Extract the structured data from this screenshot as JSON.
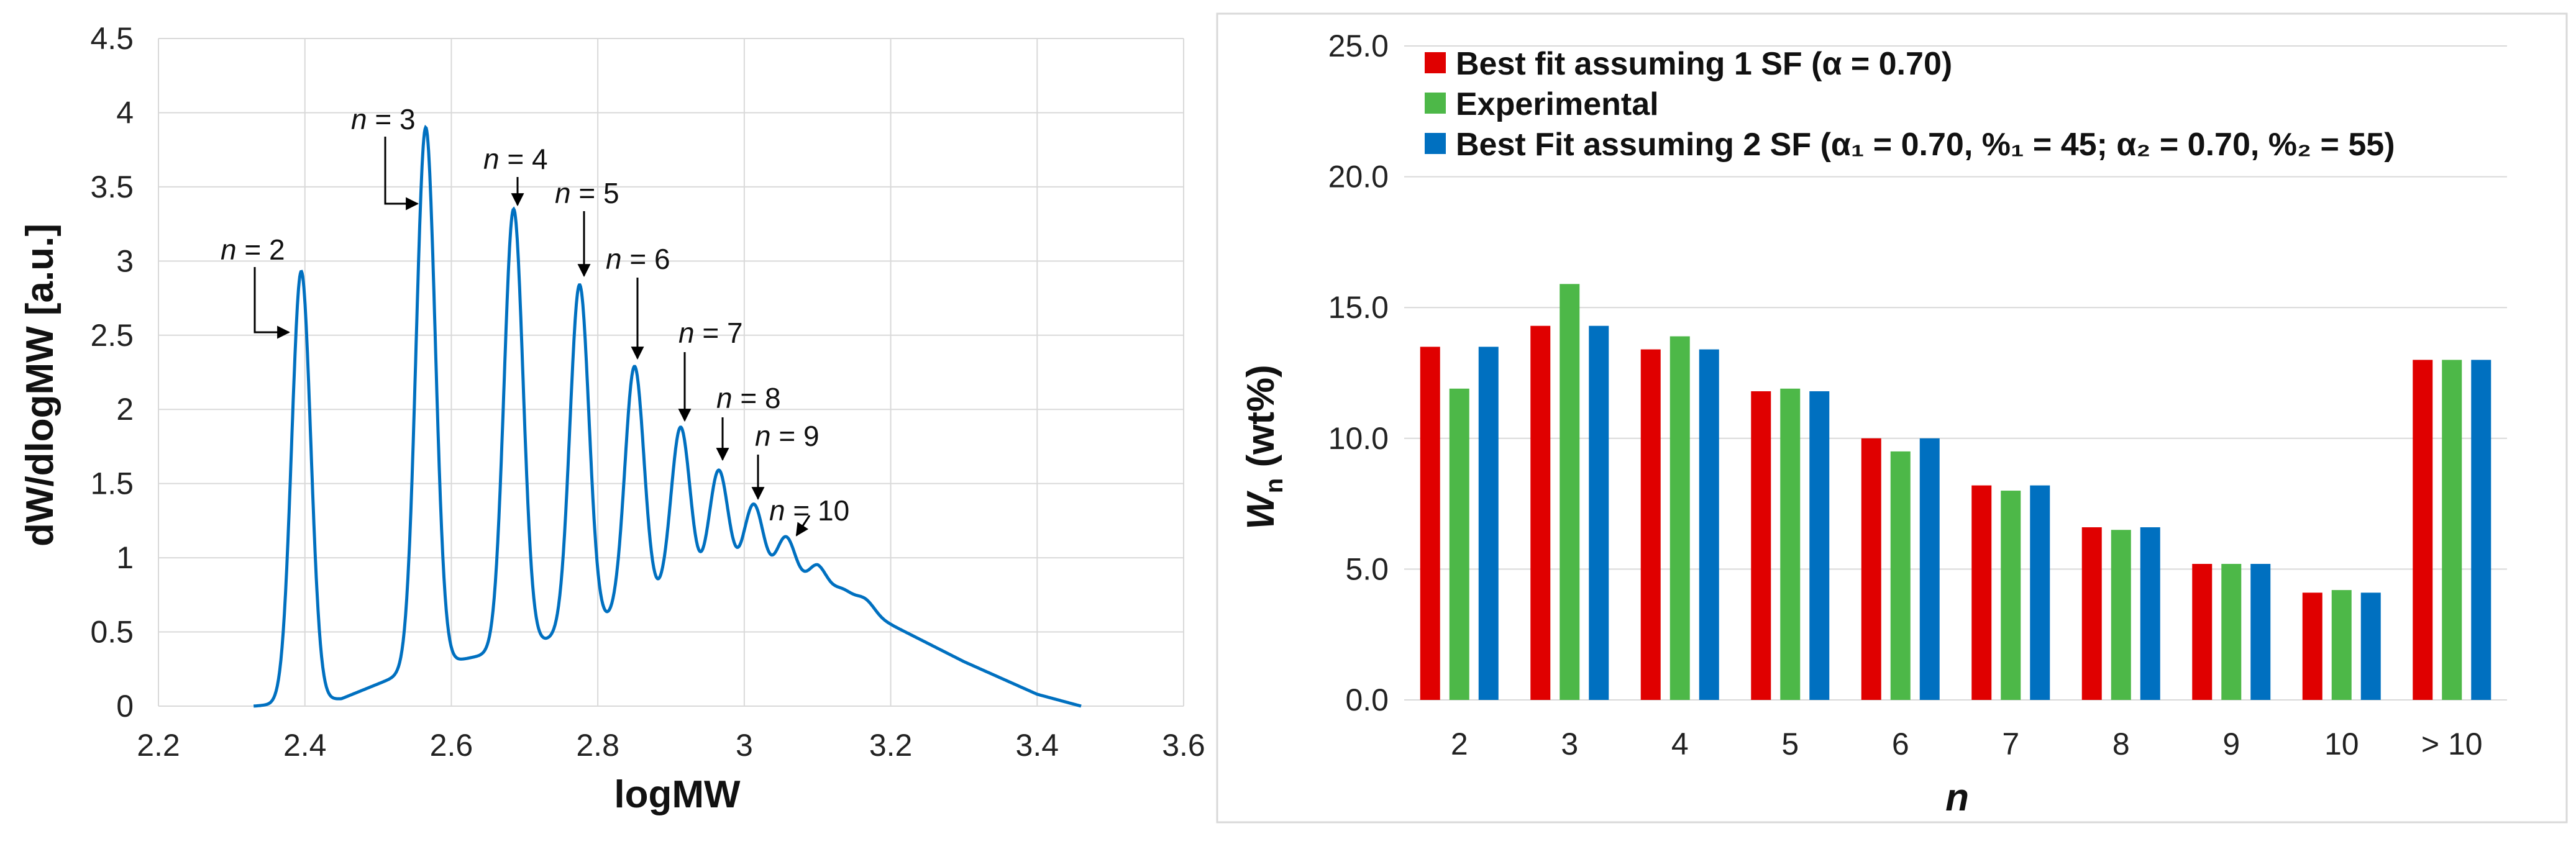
{
  "colors": {
    "curve": "#0070c0",
    "grid": "#d9d9d9",
    "series_1": "#e00000",
    "series_2": "#4db848",
    "series_3": "#0070c0"
  },
  "chart_data": [
    {
      "type": "line",
      "title": "",
      "xlabel": "logMW",
      "ylabel": "dW/dlogMW [a.u.]",
      "xlim": [
        2.2,
        3.6
      ],
      "ylim": [
        0,
        4.5
      ],
      "x_ticks": [
        "2.2",
        "2.4",
        "2.6",
        "2.8",
        "3",
        "3.2",
        "3.4",
        "3.6"
      ],
      "y_ticks": [
        "0",
        "0.5",
        "1",
        "1.5",
        "2",
        "2.5",
        "3",
        "3.5",
        "4",
        "4.5"
      ],
      "grid": true,
      "baseline_points": [
        [
          2.33,
          0.0
        ],
        [
          2.45,
          0.05
        ],
        [
          2.55,
          0.25
        ],
        [
          2.7,
          0.4
        ],
        [
          2.8,
          0.55
        ],
        [
          2.9,
          0.75
        ],
        [
          3.0,
          0.85
        ],
        [
          3.1,
          0.78
        ],
        [
          3.2,
          0.55
        ],
        [
          3.3,
          0.3
        ],
        [
          3.4,
          0.08
        ],
        [
          3.46,
          0.0
        ]
      ],
      "peaks": [
        {
          "label": "2",
          "x": 2.395,
          "y": 2.93
        },
        {
          "label": "3",
          "x": 2.565,
          "y": 3.9
        },
        {
          "label": "4",
          "x": 2.685,
          "y": 3.35
        },
        {
          "label": "5",
          "x": 2.775,
          "y": 2.84
        },
        {
          "label": "6",
          "x": 2.85,
          "y": 2.29
        },
        {
          "label": "7",
          "x": 2.913,
          "y": 1.88
        },
        {
          "label": "8",
          "x": 2.965,
          "y": 1.59
        },
        {
          "label": "9",
          "x": 3.013,
          "y": 1.36
        },
        {
          "label": "10",
          "x": 3.057,
          "y": 1.14
        },
        {
          "label": "",
          "x": 3.1,
          "y": 0.95
        },
        {
          "label": "",
          "x": 3.135,
          "y": 0.78
        },
        {
          "label": "",
          "x": 3.165,
          "y": 0.72
        }
      ],
      "annotations": [
        {
          "var": "n",
          "text": " = 2"
        },
        {
          "var": "n",
          "text": " = 3"
        },
        {
          "var": "n",
          "text": " = 4"
        },
        {
          "var": "n",
          "text": " = 5"
        },
        {
          "var": "n",
          "text": " = 6"
        },
        {
          "var": "n",
          "text": " = 7"
        },
        {
          "var": "n",
          "text": " = 8"
        },
        {
          "var": "n",
          "text": " = 9"
        },
        {
          "var": "n",
          "text": " = 10"
        }
      ]
    },
    {
      "type": "bar",
      "title": "",
      "xlabel": "n",
      "ylabel": "W",
      "ylabel_sub": "n",
      "ylabel_suffix": " (wt%)",
      "ylim": [
        0,
        25
      ],
      "y_ticks": [
        "0.0",
        "5.0",
        "10.0",
        "15.0",
        "20.0",
        "25.0"
      ],
      "categories": [
        "2",
        "3",
        "4",
        "5",
        "6",
        "7",
        "8",
        "9",
        "10",
        "> 10"
      ],
      "grid": true,
      "legend_position": "top-left",
      "series": [
        {
          "name": "Best fit assuming 1 SF (α = 0.70)",
          "values": [
            13.5,
            14.3,
            13.4,
            11.8,
            10.0,
            8.2,
            6.6,
            5.2,
            4.1,
            13.0
          ]
        },
        {
          "name": "Experimental",
          "values": [
            11.9,
            15.9,
            13.9,
            11.9,
            9.5,
            8.0,
            6.5,
            5.2,
            4.2,
            13.0
          ]
        },
        {
          "name": "Best Fit assuming 2 SF (α₁ = 0.70, %₁ = 45; α₂ = 0.70, %₂ = 55)",
          "values": [
            13.5,
            14.3,
            13.4,
            11.8,
            10.0,
            8.2,
            6.6,
            5.2,
            4.1,
            13.0
          ]
        }
      ]
    }
  ]
}
